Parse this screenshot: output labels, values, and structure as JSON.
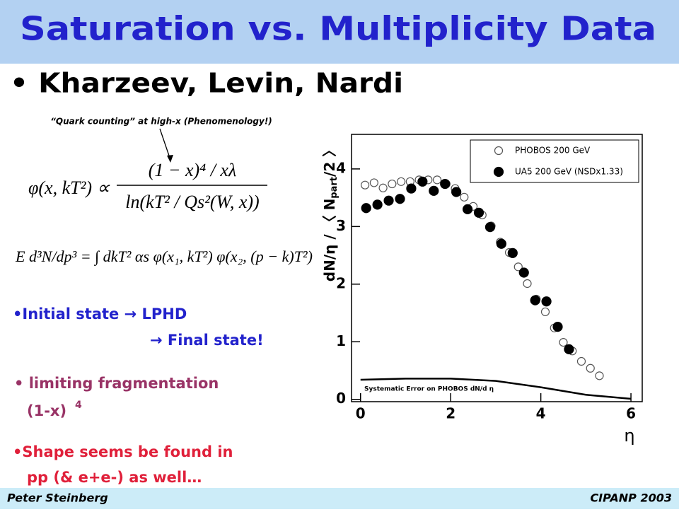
{
  "slide": {
    "title": "Saturation vs. Multiplicity Data",
    "bullet": "• Kharzeev, Levin, Nardi",
    "note": "“Quark counting” at high-x (Phenomenology!)",
    "eq1": {
      "lhs": "φ(x, kT²) ∝",
      "num": "(1 − x)⁴ / xλ",
      "den": "ln(kT² / Qs²(W, x))"
    },
    "eq2": "E d³N/dp³ = ∫ dkT² αs φ(x₁, kT²) φ(x₂, (p − k)T²)",
    "items": [
      "•Initial state → LPHD",
      "→ Final state!",
      "• limiting fragmentation",
      "(1-x)",
      "4",
      "•Shape seems be found in",
      "pp (& e+e-) as well…"
    ],
    "footer_left": "Peter Steinberg",
    "footer_right": "CIPANP 2003"
  },
  "chart_data": {
    "type": "scatter",
    "xlabel": "η",
    "ylabel": [
      "dN/η / 〈 N",
      "part",
      "/2 〉"
    ],
    "xlim": [
      -0.2,
      6.25
    ],
    "ylim": [
      -0.04,
      4.6
    ],
    "xticks": [
      0,
      2,
      4,
      6
    ],
    "yticks": [
      0,
      1,
      2,
      3,
      4
    ],
    "legend": "top-right",
    "series": [
      {
        "name": "PHOBOS 200 GeV",
        "color": "#555555",
        "marker": "open",
        "x": [
          0.1,
          0.3,
          0.5,
          0.7,
          0.9,
          1.1,
          1.3,
          1.5,
          1.7,
          1.9,
          2.1,
          2.3,
          2.5,
          2.7,
          2.9,
          3.1,
          3.3,
          3.5,
          3.7,
          3.9,
          4.1,
          4.3,
          4.5,
          4.7,
          4.9,
          5.1,
          5.3
        ],
        "values": [
          3.72,
          3.76,
          3.67,
          3.74,
          3.78,
          3.78,
          3.81,
          3.81,
          3.81,
          3.74,
          3.66,
          3.51,
          3.35,
          3.2,
          3.01,
          2.73,
          2.55,
          2.3,
          2.01,
          1.74,
          1.52,
          1.24,
          0.99,
          0.84,
          0.66,
          0.54,
          0.41
        ]
      },
      {
        "name": "UA5 200 GeV (NSDx1.33)",
        "color": "#000000",
        "marker": "filled",
        "x": [
          0.125,
          0.375,
          0.625,
          0.875,
          1.125,
          1.375,
          1.625,
          1.875,
          2.125,
          2.375,
          2.625,
          2.875,
          3.125,
          3.375,
          3.625,
          3.875,
          4.125,
          4.375,
          4.625
        ],
        "values": [
          3.32,
          3.38,
          3.45,
          3.48,
          3.66,
          3.78,
          3.62,
          3.74,
          3.6,
          3.3,
          3.24,
          2.99,
          2.7,
          2.54,
          2.2,
          1.72,
          1.7,
          1.26,
          0.87
        ]
      }
    ],
    "systematic_error": {
      "label": "Systematic Error on PHOBOS dN/d  η",
      "color": "#000000",
      "x": [
        0,
        1,
        2,
        3,
        4,
        5,
        6
      ],
      "values": [
        0.34,
        0.36,
        0.36,
        0.32,
        0.21,
        0.08,
        0.01
      ]
    }
  }
}
